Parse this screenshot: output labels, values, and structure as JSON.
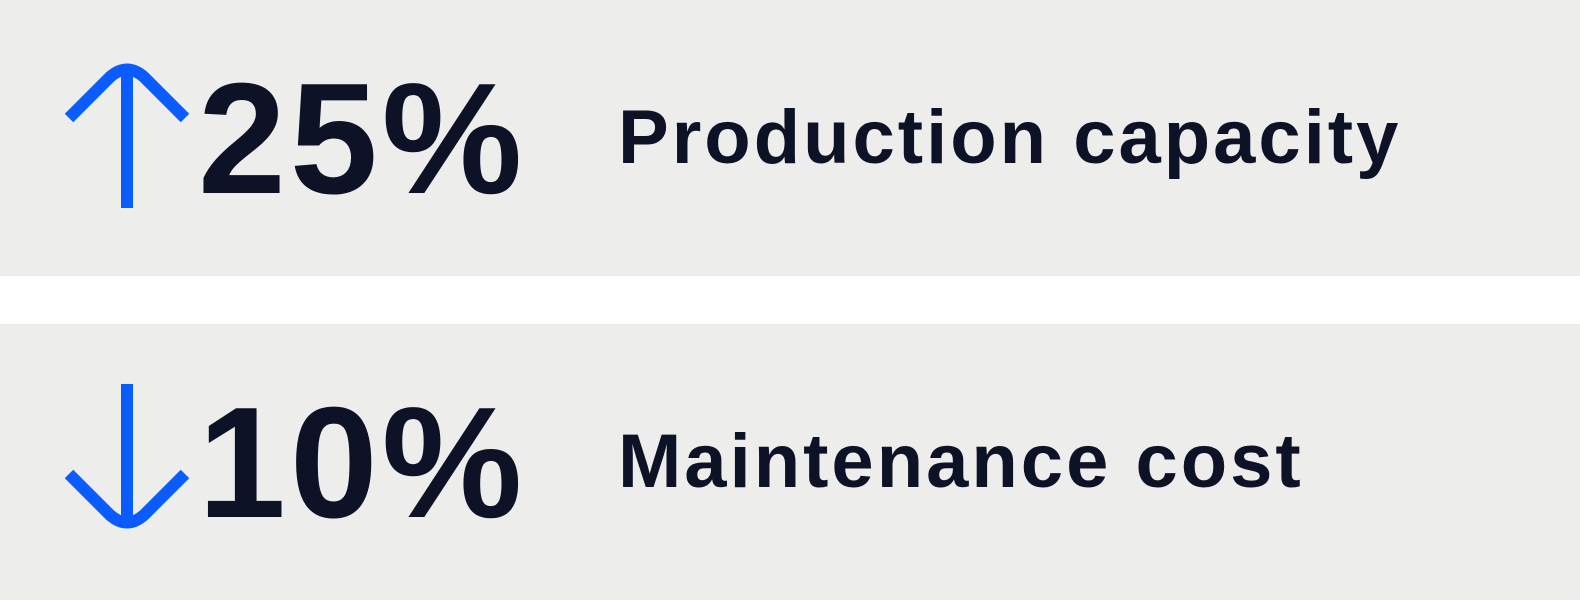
{
  "colors": {
    "background": "#ededeb",
    "accent": "#0a5cff",
    "text": "#0d1226"
  },
  "stats": [
    {
      "direction": "up",
      "icon": "arrow-up-icon",
      "value": "25%",
      "label": "Production capacity"
    },
    {
      "direction": "down",
      "icon": "arrow-down-icon",
      "value": "10%",
      "label": "Maintenance cost"
    }
  ]
}
